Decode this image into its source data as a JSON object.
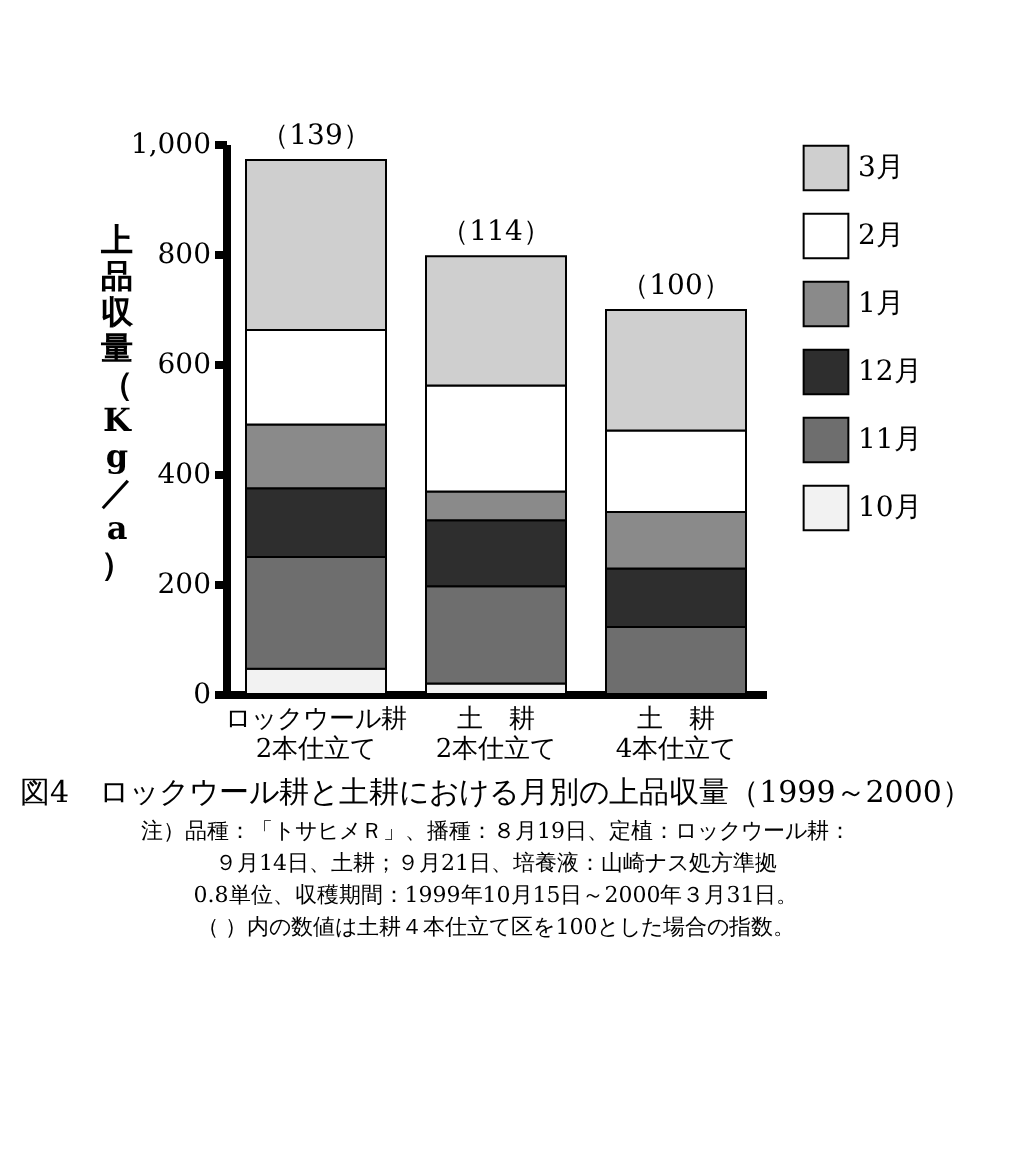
{
  "chart_data": {
    "type": "bar",
    "stacked": true,
    "title": "図4　ロックウール耕と土耕における月別の上品収量（1999～2000）",
    "ylabel": "上品収量（Kg／a）",
    "categories": [
      "ロックウール耕\n2本仕立て",
      "土　耕\n2本仕立て",
      "土　耕\n4本仕立て"
    ],
    "series": [
      {
        "name": "10月",
        "color": "#f2f2f2",
        "values": [
          46,
          19,
          0
        ]
      },
      {
        "name": "11月",
        "color": "#6e6e6e",
        "values": [
          203,
          177,
          122
        ]
      },
      {
        "name": "12月",
        "color": "#2e2e2e",
        "values": [
          125,
          120,
          106
        ]
      },
      {
        "name": "1月",
        "color": "#8a8a8a",
        "values": [
          116,
          52,
          103
        ]
      },
      {
        "name": "2月",
        "color": "#ffffff",
        "values": [
          172,
          193,
          148
        ]
      },
      {
        "name": "3月",
        "color": "#cfcfcf",
        "values": [
          309,
          235,
          219
        ]
      }
    ],
    "ylim": [
      0,
      1000
    ],
    "yticks": [
      0,
      200,
      400,
      600,
      800,
      {
        "value": 1000,
        "label": "1,000"
      }
    ],
    "grid": false,
    "legend": "top right",
    "annotations": [
      {
        "text": "（139）",
        "x": "ロックウール耕\n2本仕立て",
        "y": 971
      },
      {
        "text": "（114）",
        "x": "土　耕\n2本仕立て",
        "y": 796
      },
      {
        "text": "（100）",
        "x": "土　耕\n4本仕立て",
        "y": 698
      },
      "注）品種：「トサヒメＲ」、播種：８月19日、定植：ロックウール耕：",
      "９月14日、土耕；９月21日、培養液：山崎ナス処方準拠",
      "0.8単位、収穫期間：1999年10月15日～2000年３月31日。",
      "（ ）内の数値は土耕４本仕立て区を100とした場合の指数。"
    ]
  }
}
